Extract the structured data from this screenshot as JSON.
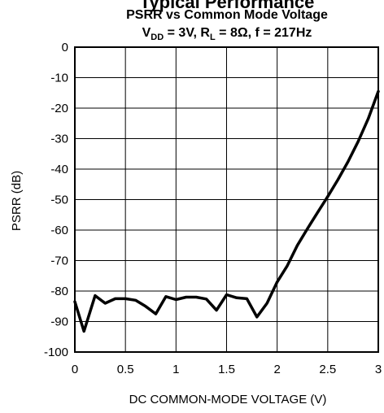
{
  "chart_data": {
    "type": "line",
    "title_top": "Typical Performance",
    "title": "PSRR vs Common Mode Voltage",
    "subtitle_parts": {
      "vdd_main": "V",
      "vdd_sub": "DD",
      "vdd_value": " = 3V, R",
      "rl_sub": "L",
      "rest": " = 8Ω, f = 217Hz"
    },
    "xlabel": "DC COMMON-MODE VOLTAGE (V)",
    "ylabel": "PSRR (dB)",
    "xlim": [
      0,
      3
    ],
    "ylim": [
      -100,
      0
    ],
    "x_ticks": [
      0,
      0.5,
      1,
      1.5,
      2,
      2.5,
      3
    ],
    "x_tick_labels": [
      "0",
      "0.5",
      "1",
      "1.5",
      "2",
      "2.5",
      "3"
    ],
    "y_ticks": [
      0,
      -10,
      -20,
      -30,
      -40,
      -50,
      -60,
      -70,
      -80,
      -90,
      -100
    ],
    "y_tick_labels": [
      "0",
      "-10",
      "-20",
      "-30",
      "-40",
      "-50",
      "-60",
      "-70",
      "-80",
      "-90",
      "-100"
    ],
    "grid": true,
    "legend": "none",
    "series": [
      {
        "color": "#000000",
        "x": [
          0,
          0.09,
          0.2,
          0.3,
          0.4,
          0.5,
          0.6,
          0.7,
          0.8,
          0.9,
          1.0,
          1.1,
          1.2,
          1.3,
          1.4,
          1.5,
          1.6,
          1.7,
          1.8,
          1.9,
          2.0,
          2.1,
          2.2,
          2.3,
          2.4,
          2.5,
          2.6,
          2.7,
          2.8,
          2.9,
          3.0
        ],
        "y": [
          -83.5,
          -93.2,
          -81.5,
          -84,
          -82.5,
          -82.5,
          -83,
          -85,
          -87.5,
          -81.8,
          -82.8,
          -82,
          -82,
          -82.6,
          -86.3,
          -81.2,
          -82.2,
          -82.5,
          -88.5,
          -84,
          -77,
          -71.7,
          -65,
          -59.5,
          -54.2,
          -49,
          -43.5,
          -37.6,
          -31,
          -23.5,
          -14.5
        ]
      }
    ]
  }
}
